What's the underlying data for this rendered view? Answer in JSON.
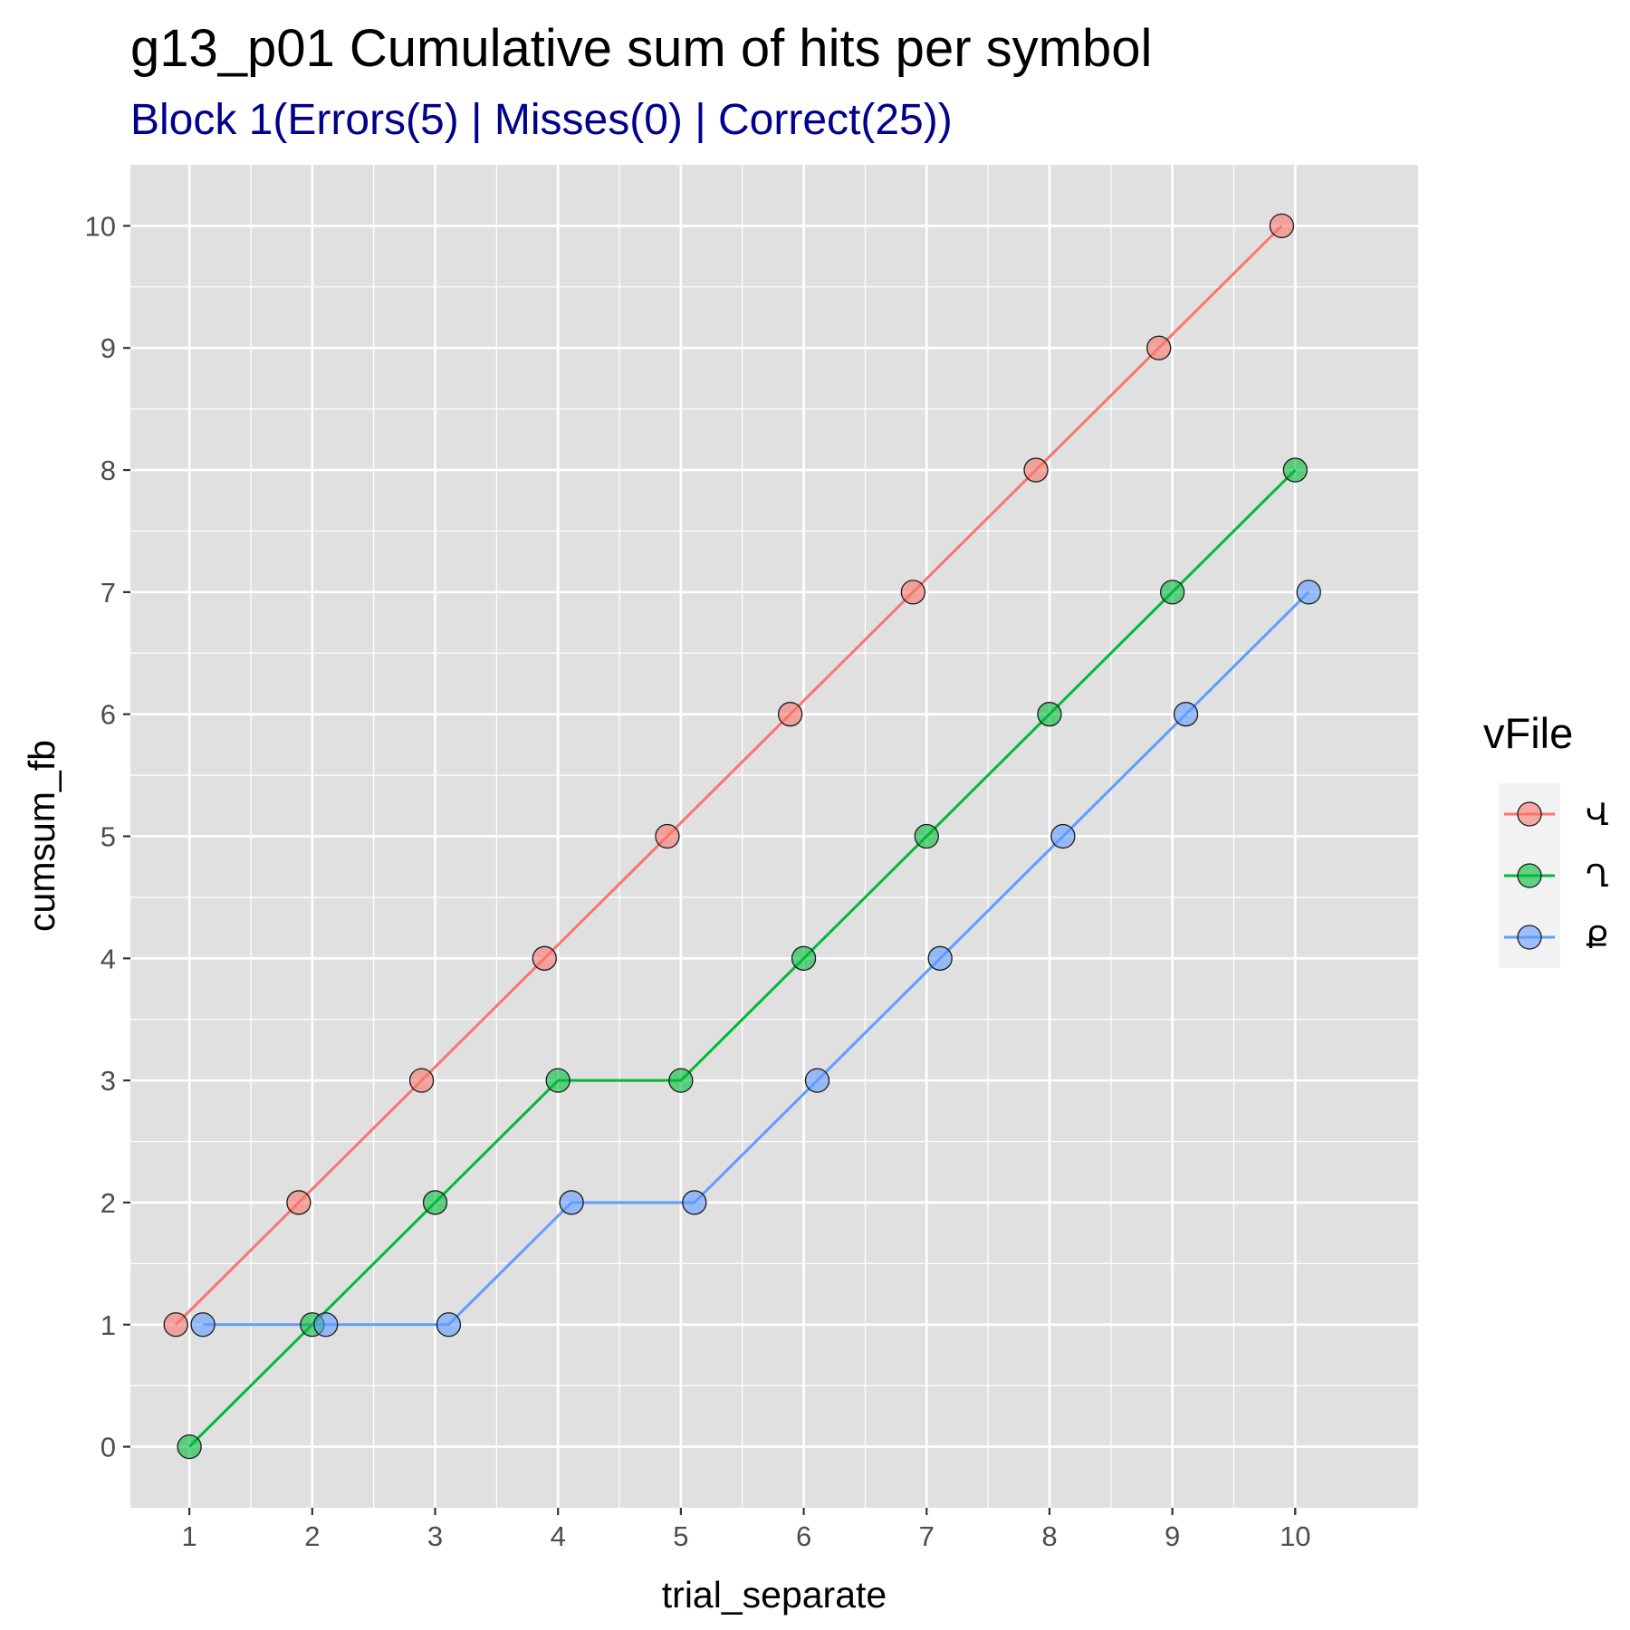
{
  "chart_data": {
    "type": "line",
    "title": "g13_p01 Cumulative sum of hits per symbol",
    "subtitle": "Block 1(Errors(5) | Misses(0) | Correct(25))",
    "xlabel": "trial_separate",
    "ylabel": "cumsum_fb",
    "x": [
      1,
      2,
      3,
      4,
      5,
      6,
      7,
      8,
      9,
      10
    ],
    "xlim": [
      0.52,
      11.0
    ],
    "ylim": [
      -0.5,
      10.5
    ],
    "x_ticks": [
      "1",
      "2",
      "3",
      "4",
      "5",
      "6",
      "7",
      "8",
      "9",
      "10"
    ],
    "y_ticks": [
      "0",
      "1",
      "2",
      "3",
      "4",
      "5",
      "6",
      "7",
      "8",
      "9",
      "10"
    ],
    "grid": true,
    "legend": {
      "title": "vFile",
      "position": "right"
    },
    "series": [
      {
        "name": "Վ",
        "color": "#F8766D",
        "values": [
          1,
          2,
          3,
          4,
          5,
          6,
          7,
          8,
          9,
          10
        ]
      },
      {
        "name": "Ղ",
        "color": "#00BA38",
        "values": [
          0,
          1,
          2,
          3,
          3,
          4,
          5,
          6,
          7,
          8
        ]
      },
      {
        "name": "Ք",
        "color": "#619CFF",
        "values": [
          1,
          1,
          1,
          2,
          2,
          3,
          4,
          5,
          6,
          7
        ]
      }
    ],
    "colors": {
      "panel": "#E0E0E0",
      "grid": "#FFFFFF",
      "subtitle": "#00008B",
      "legend_key": "#F2F2F2"
    }
  }
}
